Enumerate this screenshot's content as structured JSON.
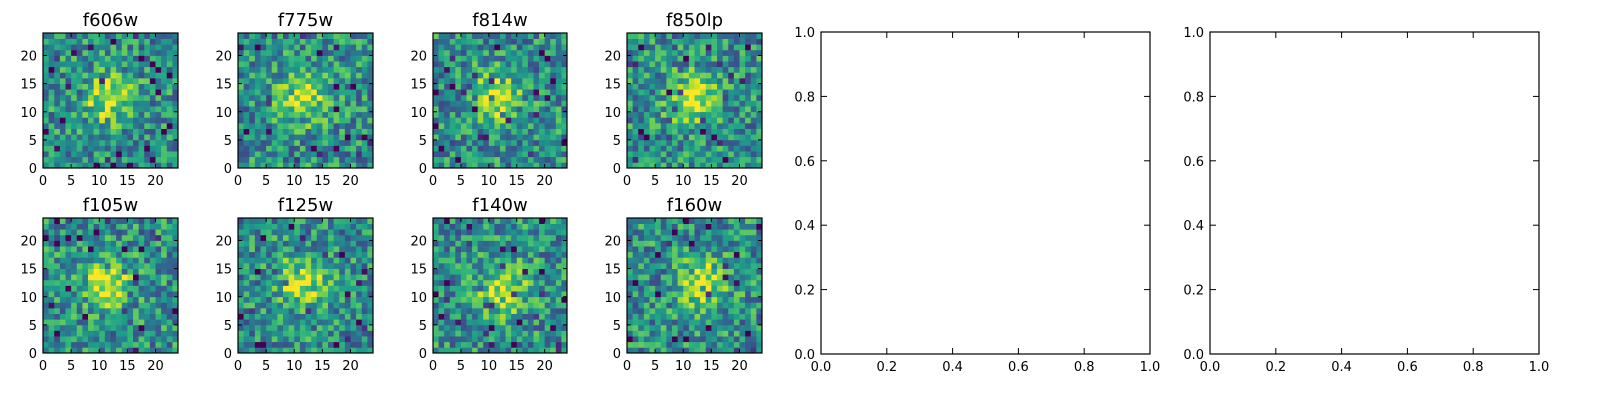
{
  "chart_data": [
    {
      "type": "heatmap",
      "title": "f606w",
      "colormap": "viridis",
      "grid_size": 24,
      "xlim": [
        0,
        24
      ],
      "ylim": [
        0,
        24
      ],
      "xticks": [
        "0",
        "5",
        "10",
        "15",
        "20"
      ],
      "yticks": [
        "0",
        "5",
        "10",
        "15",
        "20"
      ],
      "bright_center": [
        11,
        12
      ],
      "seed": 606
    },
    {
      "type": "heatmap",
      "title": "f775w",
      "colormap": "viridis",
      "grid_size": 24,
      "xlim": [
        0,
        24
      ],
      "ylim": [
        0,
        24
      ],
      "xticks": [
        "0",
        "5",
        "10",
        "15",
        "20"
      ],
      "yticks": [
        "0",
        "5",
        "10",
        "15",
        "20"
      ],
      "bright_center": [
        11,
        12
      ],
      "seed": 775
    },
    {
      "type": "heatmap",
      "title": "f814w",
      "colormap": "viridis",
      "grid_size": 24,
      "xlim": [
        0,
        24
      ],
      "ylim": [
        0,
        24
      ],
      "xticks": [
        "0",
        "5",
        "10",
        "15",
        "20"
      ],
      "yticks": [
        "0",
        "5",
        "10",
        "15",
        "20"
      ],
      "bright_center": [
        11,
        12
      ],
      "seed": 814
    },
    {
      "type": "heatmap",
      "title": "f850lp",
      "colormap": "viridis",
      "grid_size": 24,
      "xlim": [
        0,
        24
      ],
      "ylim": [
        0,
        24
      ],
      "xticks": [
        "0",
        "5",
        "10",
        "15",
        "20"
      ],
      "yticks": [
        "0",
        "5",
        "10",
        "15",
        "20"
      ],
      "bright_center": [
        11,
        12
      ],
      "seed": 850
    },
    {
      "type": "heatmap",
      "title": "f105w",
      "colormap": "viridis",
      "grid_size": 24,
      "xlim": [
        0,
        24
      ],
      "ylim": [
        0,
        24
      ],
      "xticks": [
        "0",
        "5",
        "10",
        "15",
        "20"
      ],
      "yticks": [
        "0",
        "5",
        "10",
        "15",
        "20"
      ],
      "bright_center": [
        11,
        12
      ],
      "seed": 105
    },
    {
      "type": "heatmap",
      "title": "f125w",
      "colormap": "viridis",
      "grid_size": 24,
      "xlim": [
        0,
        24
      ],
      "ylim": [
        0,
        24
      ],
      "xticks": [
        "0",
        "5",
        "10",
        "15",
        "20"
      ],
      "yticks": [
        "0",
        "5",
        "10",
        "15",
        "20"
      ],
      "bright_center": [
        11,
        12
      ],
      "seed": 125
    },
    {
      "type": "heatmap",
      "title": "f140w",
      "colormap": "viridis",
      "grid_size": 24,
      "xlim": [
        0,
        24
      ],
      "ylim": [
        0,
        24
      ],
      "xticks": [
        "0",
        "5",
        "10",
        "15",
        "20"
      ],
      "yticks": [
        "0",
        "5",
        "10",
        "15",
        "20"
      ],
      "bright_center": [
        12,
        11
      ],
      "seed": 140
    },
    {
      "type": "heatmap",
      "title": "f160w",
      "colormap": "viridis",
      "grid_size": 24,
      "xlim": [
        0,
        24
      ],
      "ylim": [
        0,
        24
      ],
      "xticks": [
        "0",
        "5",
        "10",
        "15",
        "20"
      ],
      "yticks": [
        "0",
        "5",
        "10",
        "15",
        "20"
      ],
      "bright_center": [
        13,
        12
      ],
      "seed": 160
    },
    {
      "type": "empty",
      "title": "",
      "xlim": [
        0,
        1
      ],
      "ylim": [
        0,
        1
      ],
      "xticks": [
        "0.0",
        "0.2",
        "0.4",
        "0.6",
        "0.8",
        "1.0"
      ],
      "yticks": [
        "0.0",
        "0.2",
        "0.4",
        "0.6",
        "0.8",
        "1.0"
      ]
    },
    {
      "type": "empty",
      "title": "",
      "xlim": [
        0,
        1
      ],
      "ylim": [
        0,
        1
      ],
      "xticks": [
        "0.0",
        "0.2",
        "0.4",
        "0.6",
        "0.8",
        "1.0"
      ],
      "yticks": [
        "0.0",
        "0.2",
        "0.4",
        "0.6",
        "0.8",
        "1.0"
      ]
    }
  ]
}
